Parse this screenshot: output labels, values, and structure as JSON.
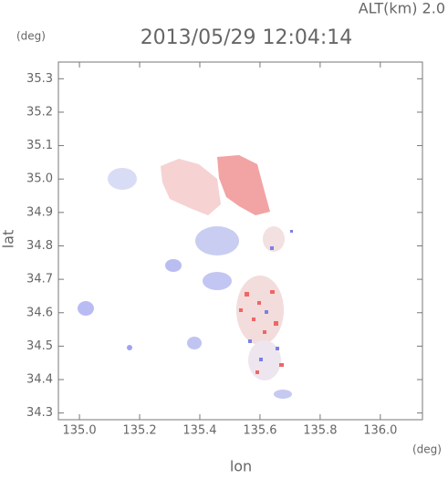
{
  "chart_data": {
    "type": "map",
    "title": "2013/05/29 12:04:14",
    "subtitle": "ALT(km) 2.0",
    "x_label": "lon",
    "x_unit": "(deg)",
    "y_label": "lat",
    "y_unit": "(deg)",
    "xlim": [
      134.93,
      136.14
    ],
    "ylim": [
      34.28,
      35.35
    ],
    "xticks": [
      {
        "value": 135,
        "label": "135.0"
      },
      135.2,
      135.4,
      135.6,
      135.8,
      {
        "value": 136,
        "label": "136.0"
      }
    ],
    "yticks": [
      34.3,
      34.4,
      34.5,
      34.6,
      34.7,
      34.8,
      34.9,
      {
        "value": 35,
        "label": "35.0"
      },
      35.1,
      35.2,
      35.3
    ],
    "grid": false
  }
}
